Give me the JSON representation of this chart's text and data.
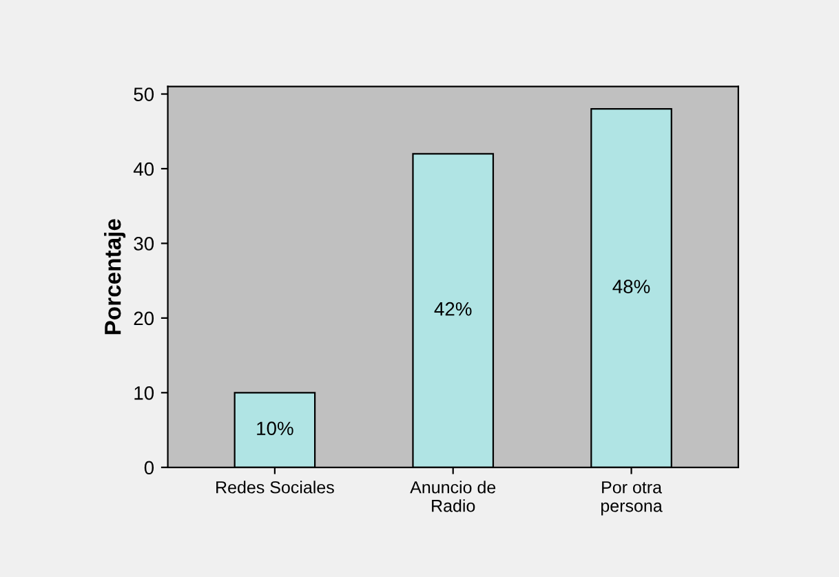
{
  "chart_data": {
    "type": "bar",
    "ylabel": "Porcentaje",
    "categories": [
      "Redes Sociales",
      "Anuncio de\nRadio",
      "Por otra\npersona"
    ],
    "values": [
      10,
      42,
      48
    ],
    "value_labels": [
      "10%",
      "42%",
      "48%"
    ],
    "color": "#b0e4e4",
    "ylim": [
      0,
      51
    ],
    "yticks": [
      0,
      10,
      20,
      30,
      40,
      50
    ],
    "grid": false
  }
}
